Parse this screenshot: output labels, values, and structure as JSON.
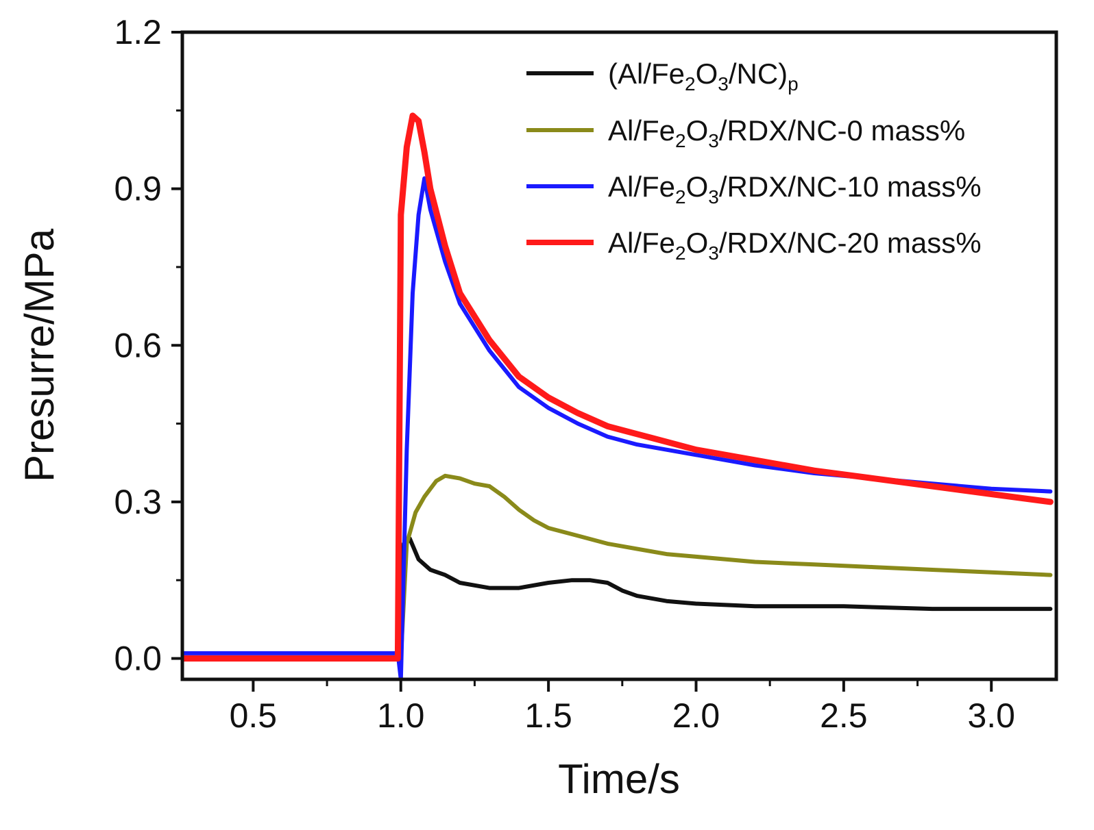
{
  "chart_data": {
    "type": "line",
    "title": "",
    "xlabel": "Time/s",
    "ylabel": "Presurre/MPa",
    "xlim": [
      0.26,
      3.22
    ],
    "ylim": [
      -0.04,
      1.2
    ],
    "xticks": [
      0.5,
      1.0,
      1.5,
      2.0,
      2.5,
      3.0
    ],
    "xtick_labels": [
      "0.5",
      "1.0",
      "1.5",
      "2.0",
      "2.5",
      "3.0"
    ],
    "yticks": [
      0.0,
      0.3,
      0.6,
      0.9,
      1.2
    ],
    "ytick_labels": [
      "0.0",
      "0.3",
      "0.6",
      "0.9",
      "1.2"
    ],
    "grid": false,
    "legend_position": "top-right",
    "series": [
      {
        "name": "(Al/Fe2O3/NC)p",
        "legend_parts": [
          {
            "text": "(Al/Fe"
          },
          {
            "text": "2",
            "sub": true
          },
          {
            "text": "O"
          },
          {
            "text": "3",
            "sub": true
          },
          {
            "text": "/NC)"
          },
          {
            "text": "p",
            "sub": true
          }
        ],
        "color": "#111111",
        "points": [
          [
            0.26,
            0.0
          ],
          [
            0.99,
            0.0
          ],
          [
            1.0,
            0.02
          ],
          [
            1.01,
            0.22
          ],
          [
            1.03,
            0.23
          ],
          [
            1.06,
            0.19
          ],
          [
            1.1,
            0.17
          ],
          [
            1.15,
            0.16
          ],
          [
            1.2,
            0.145
          ],
          [
            1.3,
            0.135
          ],
          [
            1.4,
            0.135
          ],
          [
            1.5,
            0.145
          ],
          [
            1.58,
            0.15
          ],
          [
            1.64,
            0.15
          ],
          [
            1.7,
            0.145
          ],
          [
            1.75,
            0.13
          ],
          [
            1.8,
            0.12
          ],
          [
            1.9,
            0.11
          ],
          [
            2.0,
            0.105
          ],
          [
            2.2,
            0.1
          ],
          [
            2.5,
            0.1
          ],
          [
            2.8,
            0.095
          ],
          [
            3.2,
            0.095
          ]
        ]
      },
      {
        "name": "Al/Fe2O3/RDX/NC-0 mass%",
        "legend_parts": [
          {
            "text": "Al/Fe"
          },
          {
            "text": "2",
            "sub": true
          },
          {
            "text": "O"
          },
          {
            "text": "3",
            "sub": true
          },
          {
            "text": "/RDX/NC-0 mass%"
          }
        ],
        "color": "#8a8a1a",
        "points": [
          [
            0.26,
            0.0
          ],
          [
            1.0,
            0.0
          ],
          [
            1.02,
            0.22
          ],
          [
            1.05,
            0.28
          ],
          [
            1.08,
            0.31
          ],
          [
            1.12,
            0.34
          ],
          [
            1.15,
            0.35
          ],
          [
            1.2,
            0.345
          ],
          [
            1.25,
            0.335
          ],
          [
            1.3,
            0.33
          ],
          [
            1.35,
            0.31
          ],
          [
            1.4,
            0.285
          ],
          [
            1.45,
            0.265
          ],
          [
            1.5,
            0.25
          ],
          [
            1.6,
            0.235
          ],
          [
            1.7,
            0.22
          ],
          [
            1.8,
            0.21
          ],
          [
            1.9,
            0.2
          ],
          [
            2.0,
            0.195
          ],
          [
            2.2,
            0.185
          ],
          [
            2.4,
            0.18
          ],
          [
            2.6,
            0.175
          ],
          [
            2.8,
            0.17
          ],
          [
            3.0,
            0.165
          ],
          [
            3.2,
            0.16
          ]
        ]
      },
      {
        "name": "Al/Fe2O3/RDX/NC-10 mass%",
        "legend_parts": [
          {
            "text": "Al/Fe"
          },
          {
            "text": "2",
            "sub": true
          },
          {
            "text": "O"
          },
          {
            "text": "3",
            "sub": true
          },
          {
            "text": "/RDX/NC-10 mass%"
          }
        ],
        "color": "#1a1aff",
        "points": [
          [
            0.26,
            0.01
          ],
          [
            0.99,
            0.01
          ],
          [
            1.0,
            -0.04
          ],
          [
            1.02,
            0.4
          ],
          [
            1.04,
            0.7
          ],
          [
            1.06,
            0.85
          ],
          [
            1.08,
            0.92
          ],
          [
            1.1,
            0.86
          ],
          [
            1.15,
            0.76
          ],
          [
            1.2,
            0.68
          ],
          [
            1.3,
            0.59
          ],
          [
            1.4,
            0.52
          ],
          [
            1.5,
            0.48
          ],
          [
            1.6,
            0.45
          ],
          [
            1.7,
            0.425
          ],
          [
            1.8,
            0.41
          ],
          [
            1.9,
            0.4
          ],
          [
            2.0,
            0.39
          ],
          [
            2.2,
            0.37
          ],
          [
            2.4,
            0.355
          ],
          [
            2.6,
            0.345
          ],
          [
            2.8,
            0.335
          ],
          [
            3.0,
            0.325
          ],
          [
            3.2,
            0.32
          ]
        ]
      },
      {
        "name": "Al/Fe2O3/RDX/NC-20 mass%",
        "legend_parts": [
          {
            "text": "Al/Fe"
          },
          {
            "text": "2",
            "sub": true
          },
          {
            "text": "O"
          },
          {
            "text": "3",
            "sub": true
          },
          {
            "text": "/RDX/NC-20 mass%"
          }
        ],
        "color": "#ff1a1a",
        "points": [
          [
            0.26,
            0.0
          ],
          [
            0.99,
            0.0
          ],
          [
            1.0,
            0.85
          ],
          [
            1.02,
            0.98
          ],
          [
            1.04,
            1.04
          ],
          [
            1.06,
            1.03
          ],
          [
            1.08,
            0.97
          ],
          [
            1.1,
            0.9
          ],
          [
            1.15,
            0.79
          ],
          [
            1.2,
            0.7
          ],
          [
            1.3,
            0.61
          ],
          [
            1.4,
            0.54
          ],
          [
            1.5,
            0.5
          ],
          [
            1.6,
            0.47
          ],
          [
            1.7,
            0.445
          ],
          [
            1.8,
            0.43
          ],
          [
            1.9,
            0.415
          ],
          [
            2.0,
            0.4
          ],
          [
            2.2,
            0.38
          ],
          [
            2.4,
            0.36
          ],
          [
            2.6,
            0.345
          ],
          [
            2.8,
            0.33
          ],
          [
            3.0,
            0.315
          ],
          [
            3.2,
            0.3
          ]
        ]
      }
    ]
  }
}
